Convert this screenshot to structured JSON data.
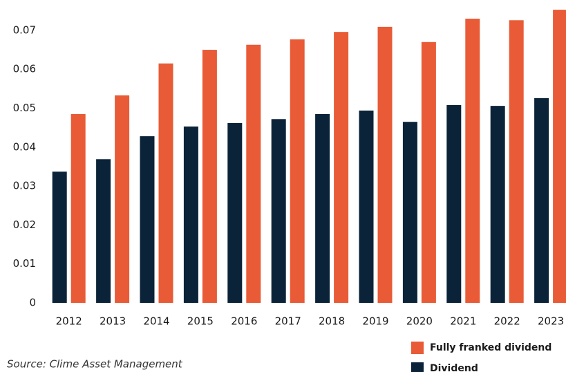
{
  "chart_data": {
    "type": "bar",
    "categories": [
      "2012",
      "2013",
      "2014",
      "2015",
      "2016",
      "2017",
      "2018",
      "2019",
      "2020",
      "2021",
      "2022",
      "2023"
    ],
    "series": [
      {
        "name": "Fully franked dividend",
        "color": "#e85b36",
        "values": [
          0.0485,
          0.0533,
          0.0615,
          0.065,
          0.0663,
          0.0677,
          0.0696,
          0.0709,
          0.067,
          0.073,
          0.0726,
          0.0753
        ]
      },
      {
        "name": "Dividend",
        "color": "#0b2338",
        "values": [
          0.0337,
          0.0369,
          0.0428,
          0.0453,
          0.0462,
          0.0472,
          0.0485,
          0.0494,
          0.0465,
          0.0508,
          0.0506,
          0.0526
        ]
      }
    ],
    "ylim": [
      0,
      0.0778
    ],
    "yticks": [
      0,
      0.01,
      0.02,
      0.03,
      0.04,
      0.05,
      0.06,
      0.07
    ],
    "source": "Source: Clime Asset Management"
  }
}
